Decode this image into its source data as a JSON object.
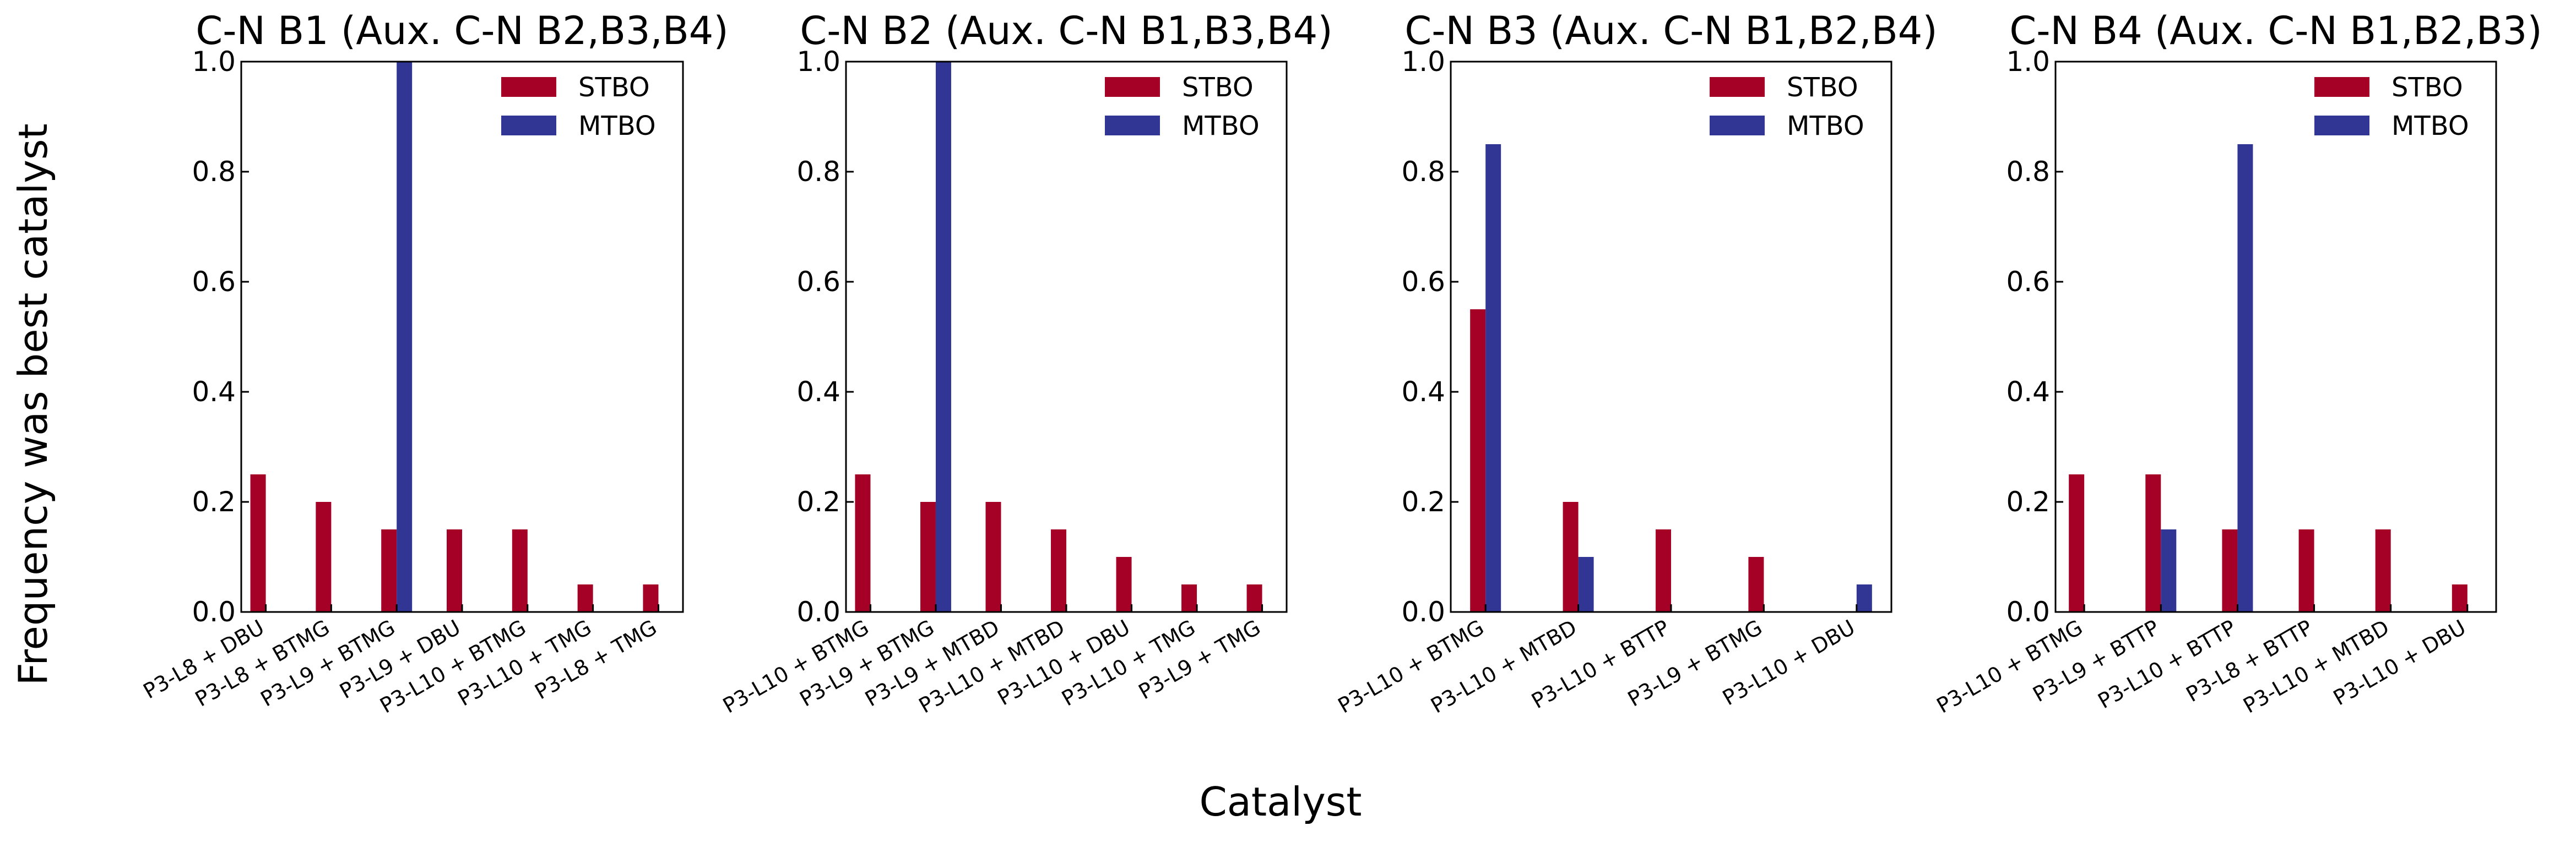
{
  "figure": {
    "supxlabel": "Catalyst",
    "supylabel": "Frequency was best catalyst"
  },
  "colors": {
    "STBO": "#a50026",
    "MTBO": "#313695"
  },
  "chart_data": [
    {
      "type": "bar",
      "title": "C-N B1 (Aux. C-N B2,B3,B4)",
      "categories": [
        "P3-L8 + DBU",
        "P3-L8 + BTMG",
        "P3-L9 + BTMG",
        "P3-L9 + DBU",
        "P3-L10 + BTMG",
        "P3-L10 + TMG",
        "P3-L8 + TMG"
      ],
      "series": [
        {
          "name": "STBO",
          "values": [
            0.25,
            0.2,
            0.15,
            0.15,
            0.15,
            0.05,
            0.05
          ]
        },
        {
          "name": "MTBO",
          "values": [
            0,
            0,
            1.0,
            0,
            0,
            0,
            0
          ]
        }
      ],
      "ylim": [
        0,
        1.0
      ],
      "yticks": [
        "0.0",
        "0.2",
        "0.4",
        "0.6",
        "0.8",
        "1.0"
      ],
      "legend": "top-right",
      "grid": false
    },
    {
      "type": "bar",
      "title": "C-N B2 (Aux. C-N B1,B3,B4)",
      "categories": [
        "P3-L10 + BTMG",
        "P3-L9 + BTMG",
        "P3-L9 + MTBD",
        "P3-L10 + MTBD",
        "P3-L10 + DBU",
        "P3-L10 + TMG",
        "P3-L9 + TMG"
      ],
      "series": [
        {
          "name": "STBO",
          "values": [
            0.25,
            0.2,
            0.2,
            0.15,
            0.1,
            0.05,
            0.05
          ]
        },
        {
          "name": "MTBO",
          "values": [
            0,
            1.0,
            0,
            0,
            0,
            0,
            0
          ]
        }
      ],
      "ylim": [
        0,
        1.0
      ],
      "yticks": [
        "0.0",
        "0.2",
        "0.4",
        "0.6",
        "0.8",
        "1.0"
      ],
      "legend": "top-right",
      "grid": false
    },
    {
      "type": "bar",
      "title": "C-N B3 (Aux. C-N B1,B2,B4)",
      "categories": [
        "P3-L10 + BTMG",
        "P3-L10 + MTBD",
        "P3-L10 + BTTP",
        "P3-L9 + BTMG",
        "P3-L10 + DBU"
      ],
      "series": [
        {
          "name": "STBO",
          "values": [
            0.55,
            0.2,
            0.15,
            0.1,
            0
          ]
        },
        {
          "name": "MTBO",
          "values": [
            0.85,
            0.1,
            0,
            0,
            0.05
          ]
        }
      ],
      "ylim": [
        0,
        1.0
      ],
      "yticks": [
        "0.0",
        "0.2",
        "0.4",
        "0.6",
        "0.8",
        "1.0"
      ],
      "legend": "top-right",
      "grid": false
    },
    {
      "type": "bar",
      "title": "C-N B4 (Aux. C-N B1,B2,B3)",
      "categories": [
        "P3-L10 + BTMG",
        "P3-L9 + BTTP",
        "P3-L10 + BTTP",
        "P3-L8 + BTTP",
        "P3-L10 + MTBD",
        "P3-L10 + DBU"
      ],
      "series": [
        {
          "name": "STBO",
          "values": [
            0.25,
            0.25,
            0.15,
            0.15,
            0.15,
            0.05
          ]
        },
        {
          "name": "MTBO",
          "values": [
            0,
            0.15,
            0.85,
            0,
            0,
            0
          ]
        }
      ],
      "ylim": [
        0,
        1.0
      ],
      "yticks": [
        "0.0",
        "0.2",
        "0.4",
        "0.6",
        "0.8",
        "1.0"
      ],
      "legend": "top-right",
      "grid": false
    }
  ]
}
